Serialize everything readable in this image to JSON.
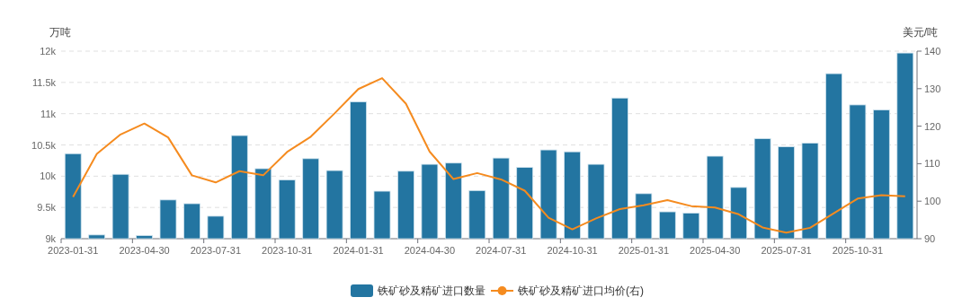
{
  "chart_data": {
    "type": "bar",
    "ylabel": "万吨",
    "y2label": "美元/吨",
    "categories": [
      "2023-01-31",
      null,
      null,
      "2023-04-30",
      null,
      null,
      "2023-07-31",
      null,
      null,
      "2023-10-31",
      null,
      null,
      "2024-01-31",
      null,
      null,
      "2024-04-30",
      null,
      null,
      "2024-07-31",
      null,
      null,
      "2024-10-31",
      null,
      null,
      "2025-01-31",
      null,
      null,
      "2025-04-30",
      null,
      null,
      "2025-07-31",
      null,
      null,
      "2025-10-31",
      null,
      null
    ],
    "series": [
      {
        "name": "铁矿砂及精矿进口数量",
        "color": "#2375a1",
        "values": [
          10360,
          9060,
          10030,
          9050,
          9620,
          9560,
          9360,
          10650,
          10120,
          9940,
          10280,
          10090,
          11190,
          9760,
          10080,
          10190,
          10210,
          9770,
          10290,
          10140,
          10420,
          10390,
          10190,
          11250,
          9720,
          9430,
          9410,
          10320,
          9820,
          10600,
          10470,
          10530,
          11640,
          11140,
          11060,
          11970
        ]
      },
      {
        "name": "铁矿砂及精矿进口均价(右)",
        "type": "line",
        "axis": "y2",
        "color": "#f58b1f",
        "values": [
          101.1,
          112.6,
          117.8,
          120.7,
          117.0,
          106.9,
          105.0,
          108.0,
          106.9,
          113.1,
          117.2,
          123.4,
          129.9,
          132.8,
          126.0,
          113.2,
          105.9,
          107.5,
          105.8,
          102.8,
          95.6,
          92.5,
          95.4,
          97.9,
          98.9,
          100.3,
          98.7,
          98.3,
          96.5,
          93.0,
          91.6,
          92.9,
          96.8,
          100.7,
          101.6,
          101.3
        ]
      }
    ],
    "ylim": [
      9000,
      12000
    ],
    "yticks": [
      {
        "value": 9000,
        "label": "9k"
      },
      {
        "value": 9500,
        "label": "9.5k"
      },
      {
        "value": 10000,
        "label": "10k"
      },
      {
        "value": 10500,
        "label": "10.5k"
      },
      {
        "value": 11000,
        "label": "11k"
      },
      {
        "value": 11500,
        "label": "11.5k"
      },
      {
        "value": 12000,
        "label": "12k"
      }
    ],
    "y2lim": [
      90,
      140
    ],
    "y2ticks": [
      90,
      100,
      110,
      120,
      130,
      140
    ],
    "grid": "y",
    "legend": "bottom"
  }
}
